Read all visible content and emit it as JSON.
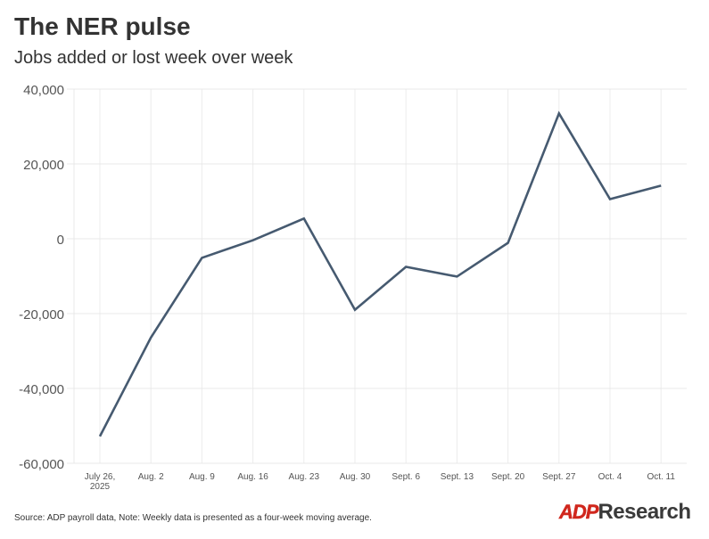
{
  "chart_data": {
    "type": "line",
    "title": "The NER pulse",
    "subtitle": "Jobs added or lost week over week",
    "categories": [
      "July 26, 2025",
      "Aug. 2",
      "Aug. 9",
      "Aug. 16",
      "Aug. 23",
      "Aug. 30",
      "Sept. 6",
      "Sept. 13",
      "Sept. 20",
      "Sept. 27",
      "Oct. 4",
      "Oct. 11"
    ],
    "category_lines": [
      [
        "July 26,",
        "2025"
      ],
      [
        "Aug. 2"
      ],
      [
        "Aug. 9"
      ],
      [
        "Aug. 16"
      ],
      [
        "Aug. 23"
      ],
      [
        "Aug. 30"
      ],
      [
        "Sept. 6"
      ],
      [
        "Sept. 13"
      ],
      [
        "Sept. 20"
      ],
      [
        "Sept. 27"
      ],
      [
        "Oct. 4"
      ],
      [
        "Oct. 11"
      ]
    ],
    "series": [
      {
        "name": "Jobs added or lost",
        "values": [
          -52800,
          -26400,
          -5100,
          -400,
          5400,
          -19000,
          -7500,
          -10100,
          -1100,
          33500,
          10600,
          14200
        ],
        "color": "#465a70"
      }
    ],
    "ylim": [
      -60000,
      40000
    ],
    "yticks": [
      40000,
      20000,
      0,
      -20000,
      -40000,
      -60000
    ],
    "ytick_labels": [
      "40,000",
      "20,000",
      "0",
      "-20,000",
      "-40,000",
      "-60,000"
    ],
    "grid": true,
    "xlabel": "",
    "ylabel": ""
  },
  "footer": {
    "source": "Source: ADP payroll data, Note: Weekly data is presented as a four-week moving average.",
    "logo_adp": "ADP",
    "logo_research": "Research"
  }
}
